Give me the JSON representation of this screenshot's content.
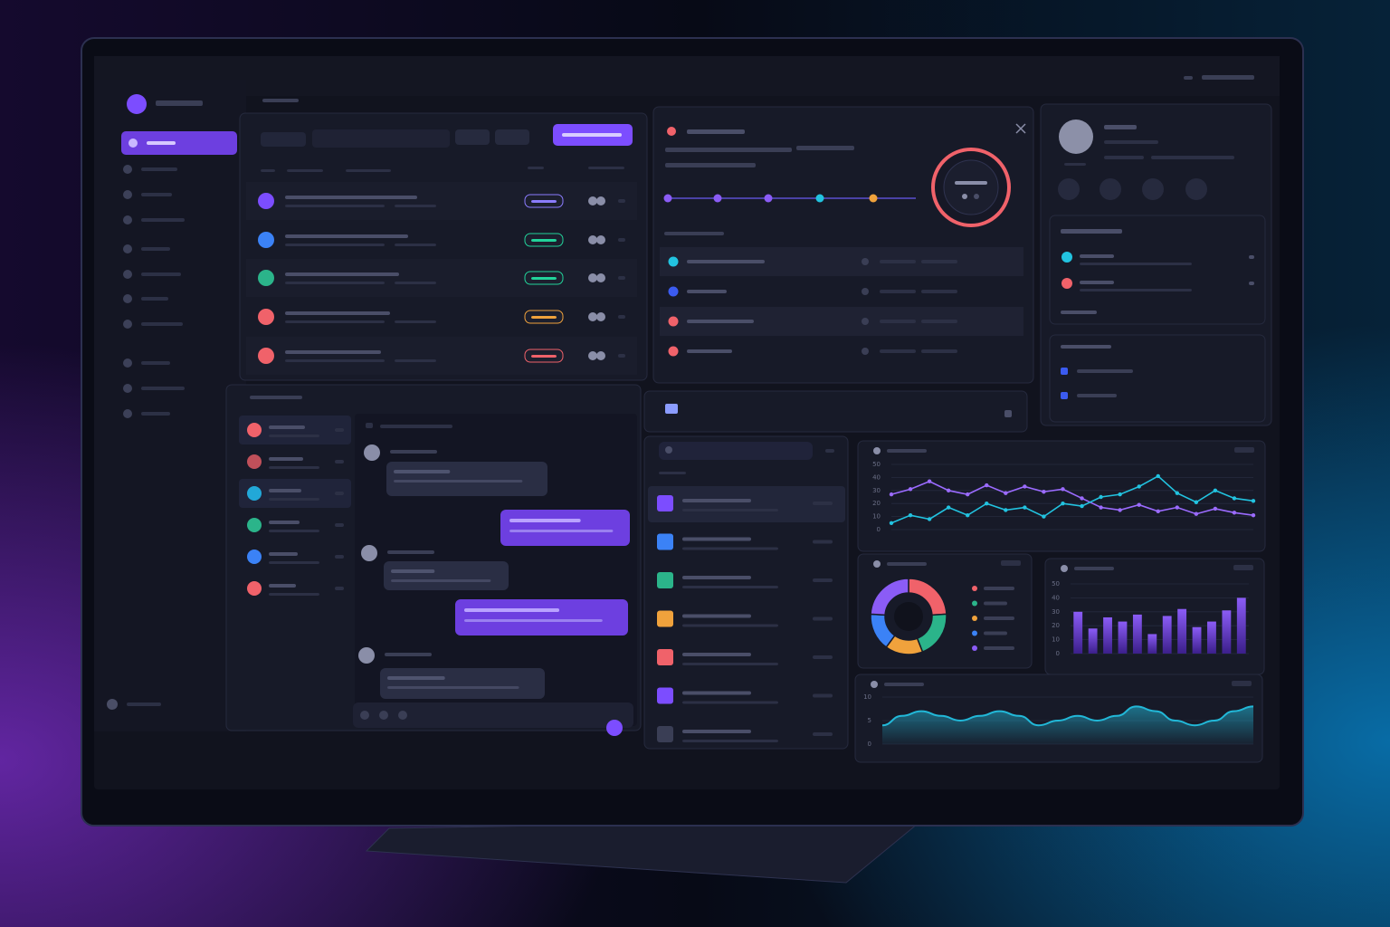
{
  "chart_data": [
    {
      "type": "line",
      "series": [
        {
          "color": "#9b6bff",
          "values": [
            27,
            31,
            37,
            30,
            27,
            34,
            28,
            33,
            29,
            31,
            24,
            17,
            15,
            19,
            14,
            17,
            12,
            16,
            13,
            11
          ]
        },
        {
          "color": "#22c3e0",
          "values": [
            5,
            11,
            8,
            17,
            11,
            20,
            15,
            17,
            10,
            20,
            18,
            25,
            27,
            33,
            41,
            28,
            21,
            30,
            24,
            22
          ]
        }
      ],
      "ylim": [
        0,
        50
      ],
      "yticks": [
        0,
        10,
        20,
        30,
        40,
        50
      ],
      "grid": true
    },
    {
      "type": "donut",
      "values": [
        24,
        20,
        16,
        16,
        24
      ],
      "colors": [
        "#f0626a",
        "#2bb48a",
        "#f0a23c",
        "#3b82f6",
        "#8b5cf6"
      ]
    },
    {
      "type": "bar",
      "values": [
        30,
        18,
        26,
        23,
        28,
        14,
        27,
        32,
        19,
        23,
        31,
        40
      ],
      "color": "#6d3fd8",
      "ylim": [
        0,
        50
      ],
      "yticks": [
        0,
        10,
        20,
        30,
        40,
        50
      ],
      "grid": true
    },
    {
      "type": "area",
      "values": [
        4,
        6,
        7,
        6,
        5,
        6,
        7,
        6,
        4,
        5,
        6,
        5,
        6,
        8,
        7,
        5,
        4,
        5,
        7,
        8
      ],
      "color": "#22b8d8",
      "ylim": [
        0,
        10
      ],
      "yticks": [
        0,
        5,
        10
      ],
      "grid": true
    }
  ]
}
